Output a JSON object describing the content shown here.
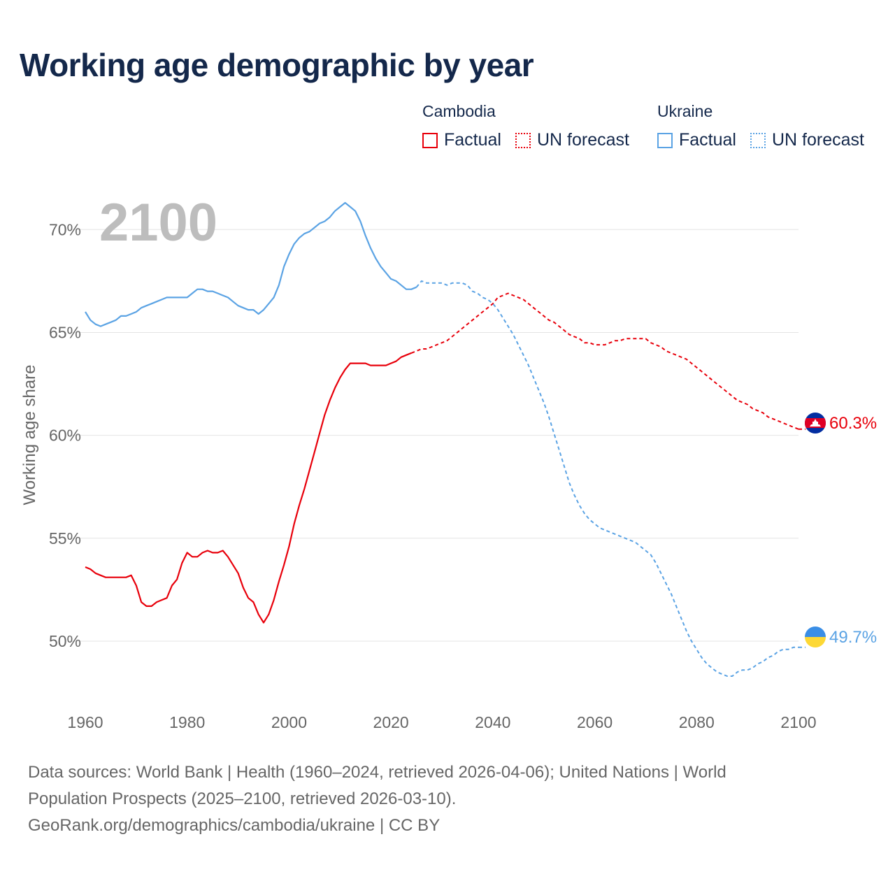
{
  "title": "Working age demographic by year",
  "legend": {
    "groups": [
      {
        "country": "Cambodia",
        "color": "#e8000b",
        "items": [
          "Factual",
          "UN forecast"
        ]
      },
      {
        "country": "Ukraine",
        "color": "#5ba3e4",
        "items": [
          "Factual",
          "UN forecast"
        ]
      }
    ]
  },
  "chart_data": {
    "type": "line",
    "year_label": "2100",
    "ylabel": "Working age share",
    "xlim": [
      1960,
      2100
    ],
    "ylim": [
      46.5,
      73
    ],
    "x_ticks": [
      "1960",
      "1980",
      "2000",
      "2020",
      "2040",
      "2060",
      "2080",
      "2100"
    ],
    "y_ticks": [
      "50%",
      "55%",
      "60%",
      "65%",
      "70%"
    ],
    "y_tick_values": [
      50,
      55,
      60,
      65,
      70
    ],
    "grid": true,
    "end_labels": {
      "Cambodia": "60.3%",
      "Ukraine": "49.7%"
    },
    "series": [
      {
        "name": "Cambodia",
        "color": "#e8000b",
        "factual": [
          [
            1960,
            53.6
          ],
          [
            1961,
            53.5
          ],
          [
            1962,
            53.3
          ],
          [
            1963,
            53.2
          ],
          [
            1964,
            53.1
          ],
          [
            1965,
            53.1
          ],
          [
            1966,
            53.1
          ],
          [
            1967,
            53.1
          ],
          [
            1968,
            53.1
          ],
          [
            1969,
            53.2
          ],
          [
            1970,
            52.7
          ],
          [
            1971,
            51.9
          ],
          [
            1972,
            51.7
          ],
          [
            1973,
            51.7
          ],
          [
            1974,
            51.9
          ],
          [
            1975,
            52.0
          ],
          [
            1976,
            52.1
          ],
          [
            1977,
            52.7
          ],
          [
            1978,
            53.0
          ],
          [
            1979,
            53.8
          ],
          [
            1980,
            54.3
          ],
          [
            1981,
            54.1
          ],
          [
            1982,
            54.1
          ],
          [
            1983,
            54.3
          ],
          [
            1984,
            54.4
          ],
          [
            1985,
            54.3
          ],
          [
            1986,
            54.3
          ],
          [
            1987,
            54.4
          ],
          [
            1988,
            54.1
          ],
          [
            1989,
            53.7
          ],
          [
            1990,
            53.3
          ],
          [
            1991,
            52.6
          ],
          [
            1992,
            52.1
          ],
          [
            1993,
            51.9
          ],
          [
            1994,
            51.3
          ],
          [
            1995,
            50.9
          ],
          [
            1996,
            51.3
          ],
          [
            1997,
            52.0
          ],
          [
            1998,
            52.9
          ],
          [
            1999,
            53.7
          ],
          [
            2000,
            54.6
          ],
          [
            2001,
            55.7
          ],
          [
            2002,
            56.6
          ],
          [
            2003,
            57.4
          ],
          [
            2004,
            58.3
          ],
          [
            2005,
            59.2
          ],
          [
            2006,
            60.1
          ],
          [
            2007,
            61.0
          ],
          [
            2008,
            61.7
          ],
          [
            2009,
            62.3
          ],
          [
            2010,
            62.8
          ],
          [
            2011,
            63.2
          ],
          [
            2012,
            63.5
          ],
          [
            2013,
            63.5
          ],
          [
            2014,
            63.5
          ],
          [
            2015,
            63.5
          ],
          [
            2016,
            63.4
          ],
          [
            2017,
            63.4
          ],
          [
            2018,
            63.4
          ],
          [
            2019,
            63.4
          ],
          [
            2020,
            63.5
          ],
          [
            2021,
            63.6
          ],
          [
            2022,
            63.8
          ],
          [
            2023,
            63.9
          ],
          [
            2024,
            64.0
          ]
        ],
        "forecast": [
          [
            2024,
            64.0
          ],
          [
            2025,
            64.1
          ],
          [
            2026,
            64.2
          ],
          [
            2027,
            64.2
          ],
          [
            2028,
            64.3
          ],
          [
            2029,
            64.4
          ],
          [
            2030,
            64.5
          ],
          [
            2031,
            64.6
          ],
          [
            2032,
            64.8
          ],
          [
            2033,
            65.0
          ],
          [
            2034,
            65.2
          ],
          [
            2035,
            65.4
          ],
          [
            2036,
            65.6
          ],
          [
            2037,
            65.8
          ],
          [
            2038,
            66.0
          ],
          [
            2039,
            66.2
          ],
          [
            2040,
            66.4
          ],
          [
            2041,
            66.7
          ],
          [
            2042,
            66.8
          ],
          [
            2043,
            66.9
          ],
          [
            2044,
            66.8
          ],
          [
            2045,
            66.7
          ],
          [
            2046,
            66.6
          ],
          [
            2047,
            66.4
          ],
          [
            2048,
            66.2
          ],
          [
            2049,
            66.0
          ],
          [
            2050,
            65.8
          ],
          [
            2051,
            65.6
          ],
          [
            2052,
            65.5
          ],
          [
            2053,
            65.3
          ],
          [
            2054,
            65.1
          ],
          [
            2055,
            64.9
          ],
          [
            2056,
            64.8
          ],
          [
            2057,
            64.7
          ],
          [
            2058,
            64.5
          ],
          [
            2059,
            64.5
          ],
          [
            2060,
            64.4
          ],
          [
            2061,
            64.4
          ],
          [
            2062,
            64.4
          ],
          [
            2063,
            64.5
          ],
          [
            2064,
            64.6
          ],
          [
            2065,
            64.6
          ],
          [
            2066,
            64.7
          ],
          [
            2067,
            64.7
          ],
          [
            2068,
            64.7
          ],
          [
            2069,
            64.7
          ],
          [
            2070,
            64.7
          ],
          [
            2071,
            64.5
          ],
          [
            2072,
            64.4
          ],
          [
            2073,
            64.3
          ],
          [
            2074,
            64.1
          ],
          [
            2075,
            64.0
          ],
          [
            2076,
            63.9
          ],
          [
            2077,
            63.8
          ],
          [
            2078,
            63.7
          ],
          [
            2079,
            63.5
          ],
          [
            2080,
            63.3
          ],
          [
            2081,
            63.1
          ],
          [
            2082,
            62.9
          ],
          [
            2083,
            62.7
          ],
          [
            2084,
            62.5
          ],
          [
            2085,
            62.3
          ],
          [
            2086,
            62.1
          ],
          [
            2087,
            61.9
          ],
          [
            2088,
            61.7
          ],
          [
            2089,
            61.6
          ],
          [
            2090,
            61.5
          ],
          [
            2091,
            61.3
          ],
          [
            2092,
            61.2
          ],
          [
            2093,
            61.1
          ],
          [
            2094,
            60.9
          ],
          [
            2095,
            60.8
          ],
          [
            2096,
            60.7
          ],
          [
            2097,
            60.6
          ],
          [
            2098,
            60.5
          ],
          [
            2099,
            60.4
          ],
          [
            2100,
            60.3
          ]
        ]
      },
      {
        "name": "Ukraine",
        "color": "#5ba3e4",
        "factual": [
          [
            1960,
            66.0
          ],
          [
            1961,
            65.6
          ],
          [
            1962,
            65.4
          ],
          [
            1963,
            65.3
          ],
          [
            1964,
            65.4
          ],
          [
            1965,
            65.5
          ],
          [
            1966,
            65.6
          ],
          [
            1967,
            65.8
          ],
          [
            1968,
            65.8
          ],
          [
            1969,
            65.9
          ],
          [
            1970,
            66.0
          ],
          [
            1971,
            66.2
          ],
          [
            1972,
            66.3
          ],
          [
            1973,
            66.4
          ],
          [
            1974,
            66.5
          ],
          [
            1975,
            66.6
          ],
          [
            1976,
            66.7
          ],
          [
            1977,
            66.7
          ],
          [
            1978,
            66.7
          ],
          [
            1979,
            66.7
          ],
          [
            1980,
            66.7
          ],
          [
            1981,
            66.9
          ],
          [
            1982,
            67.1
          ],
          [
            1983,
            67.1
          ],
          [
            1984,
            67.0
          ],
          [
            1985,
            67.0
          ],
          [
            1986,
            66.9
          ],
          [
            1987,
            66.8
          ],
          [
            1988,
            66.7
          ],
          [
            1989,
            66.5
          ],
          [
            1990,
            66.3
          ],
          [
            1991,
            66.2
          ],
          [
            1992,
            66.1
          ],
          [
            1993,
            66.1
          ],
          [
            1994,
            65.9
          ],
          [
            1995,
            66.1
          ],
          [
            1996,
            66.4
          ],
          [
            1997,
            66.7
          ],
          [
            1998,
            67.3
          ],
          [
            1999,
            68.2
          ],
          [
            2000,
            68.8
          ],
          [
            2001,
            69.3
          ],
          [
            2002,
            69.6
          ],
          [
            2003,
            69.8
          ],
          [
            2004,
            69.9
          ],
          [
            2005,
            70.1
          ],
          [
            2006,
            70.3
          ],
          [
            2007,
            70.4
          ],
          [
            2008,
            70.6
          ],
          [
            2009,
            70.9
          ],
          [
            2010,
            71.1
          ],
          [
            2011,
            71.3
          ],
          [
            2012,
            71.1
          ],
          [
            2013,
            70.9
          ],
          [
            2014,
            70.4
          ],
          [
            2015,
            69.7
          ],
          [
            2016,
            69.1
          ],
          [
            2017,
            68.6
          ],
          [
            2018,
            68.2
          ],
          [
            2019,
            67.9
          ],
          [
            2020,
            67.6
          ],
          [
            2021,
            67.5
          ],
          [
            2022,
            67.3
          ],
          [
            2023,
            67.1
          ],
          [
            2024,
            67.1
          ],
          [
            2025,
            67.2
          ]
        ],
        "forecast": [
          [
            2025,
            67.2
          ],
          [
            2026,
            67.5
          ],
          [
            2027,
            67.4
          ],
          [
            2028,
            67.4
          ],
          [
            2029,
            67.4
          ],
          [
            2030,
            67.4
          ],
          [
            2031,
            67.3
          ],
          [
            2032,
            67.4
          ],
          [
            2033,
            67.4
          ],
          [
            2034,
            67.4
          ],
          [
            2035,
            67.3
          ],
          [
            2036,
            67.0
          ],
          [
            2037,
            66.9
          ],
          [
            2038,
            66.7
          ],
          [
            2039,
            66.6
          ],
          [
            2040,
            66.4
          ],
          [
            2041,
            66.1
          ],
          [
            2042,
            65.7
          ],
          [
            2043,
            65.3
          ],
          [
            2044,
            64.9
          ],
          [
            2045,
            64.4
          ],
          [
            2046,
            63.9
          ],
          [
            2047,
            63.4
          ],
          [
            2048,
            62.8
          ],
          [
            2049,
            62.2
          ],
          [
            2050,
            61.6
          ],
          [
            2051,
            60.9
          ],
          [
            2052,
            60.1
          ],
          [
            2053,
            59.3
          ],
          [
            2054,
            58.5
          ],
          [
            2055,
            57.7
          ],
          [
            2056,
            57.1
          ],
          [
            2057,
            56.6
          ],
          [
            2058,
            56.2
          ],
          [
            2059,
            55.9
          ],
          [
            2060,
            55.7
          ],
          [
            2061,
            55.5
          ],
          [
            2062,
            55.4
          ],
          [
            2063,
            55.3
          ],
          [
            2064,
            55.2
          ],
          [
            2065,
            55.1
          ],
          [
            2066,
            55.0
          ],
          [
            2067,
            54.9
          ],
          [
            2068,
            54.8
          ],
          [
            2069,
            54.6
          ],
          [
            2070,
            54.4
          ],
          [
            2071,
            54.2
          ],
          [
            2072,
            53.8
          ],
          [
            2073,
            53.3
          ],
          [
            2074,
            52.8
          ],
          [
            2075,
            52.3
          ],
          [
            2076,
            51.7
          ],
          [
            2077,
            51.1
          ],
          [
            2078,
            50.5
          ],
          [
            2079,
            50.0
          ],
          [
            2080,
            49.6
          ],
          [
            2081,
            49.2
          ],
          [
            2082,
            48.9
          ],
          [
            2083,
            48.7
          ],
          [
            2084,
            48.5
          ],
          [
            2085,
            48.4
          ],
          [
            2086,
            48.3
          ],
          [
            2087,
            48.3
          ],
          [
            2088,
            48.5
          ],
          [
            2089,
            48.6
          ],
          [
            2090,
            48.6
          ],
          [
            2091,
            48.7
          ],
          [
            2092,
            48.9
          ],
          [
            2093,
            49.0
          ],
          [
            2094,
            49.2
          ],
          [
            2095,
            49.3
          ],
          [
            2096,
            49.5
          ],
          [
            2097,
            49.6
          ],
          [
            2098,
            49.6
          ],
          [
            2099,
            49.7
          ],
          [
            2100,
            49.7
          ]
        ]
      }
    ]
  },
  "footer": {
    "line1": "Data sources: World Bank | Health (1960–2024, retrieved 2026-04-06); United Nations | World",
    "line2": "Population Prospects (2025–2100, retrieved 2026-03-10).",
    "line3": "GeoRank.org/demographics/cambodia/ukraine | CC BY"
  }
}
